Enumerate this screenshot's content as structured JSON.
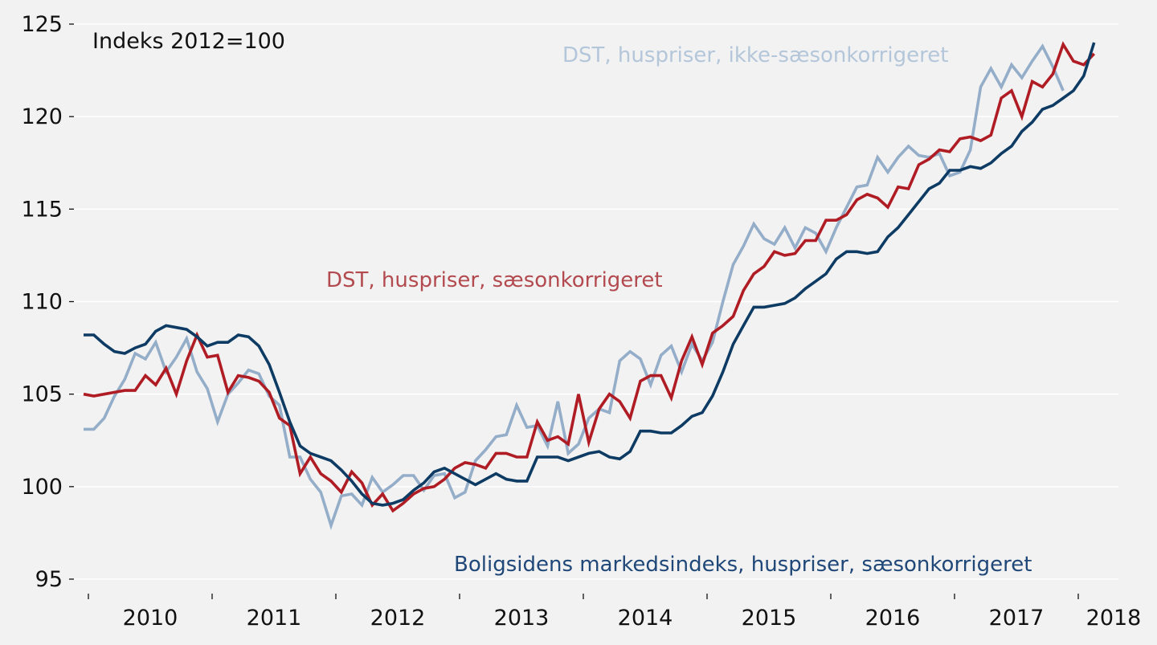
{
  "chart_data": {
    "type": "line",
    "title": "Indeks 2012=100",
    "xlabel": "",
    "ylabel": "",
    "ylim": [
      95,
      125
    ],
    "yticks": [
      95,
      100,
      105,
      110,
      115,
      120,
      125
    ],
    "ytick_labels": [
      "95",
      "100",
      "105",
      "110",
      "115",
      "120",
      "125"
    ],
    "xlim_months": [
      "2009-12",
      "2018-02"
    ],
    "xtick_labels": [
      "2010",
      "2011",
      "2012",
      "2013",
      "2014",
      "2015",
      "2016",
      "2017",
      "2018"
    ],
    "grid": true,
    "start_month": "2009-12",
    "series": [
      {
        "name": "Boligsidens markedsindeks, huspriser, sæsonkorrigeret",
        "color": "#0d3b63",
        "label_color": "#1f4778",
        "values": [
          108.2,
          108.2,
          107.7,
          107.3,
          107.2,
          107.5,
          107.7,
          108.4,
          108.7,
          108.6,
          108.5,
          108.1,
          107.6,
          107.8,
          107.8,
          108.2,
          108.1,
          107.6,
          106.6,
          105.1,
          103.5,
          102.2,
          101.8,
          101.6,
          101.4,
          100.9,
          100.3,
          99.6,
          99.1,
          99.0,
          99.1,
          99.3,
          99.8,
          100.2,
          100.8,
          101.0,
          100.7,
          100.4,
          100.1,
          100.4,
          100.7,
          100.4,
          100.3,
          100.3,
          101.6,
          101.6,
          101.6,
          101.4,
          101.6,
          101.8,
          101.9,
          101.6,
          101.5,
          101.9,
          103.0,
          103.0,
          102.9,
          102.9,
          103.3,
          103.8,
          104.0,
          104.9,
          106.2,
          107.7,
          108.7,
          109.7,
          109.7,
          109.8,
          109.9,
          110.2,
          110.7,
          111.1,
          111.5,
          112.3,
          112.7,
          112.7,
          112.6,
          112.7,
          113.5,
          114.0,
          114.7,
          115.4,
          116.1,
          116.4,
          117.1,
          117.1,
          117.3,
          117.2,
          117.5,
          118.0,
          118.4,
          119.2,
          119.7,
          120.4,
          120.6,
          121.0,
          121.4,
          122.2,
          124.0
        ]
      },
      {
        "name": "DST, huspriser, sæsonkorrigeret",
        "color": "#b01c24",
        "label_color": "#b34a4f",
        "values": [
          105.0,
          104.9,
          105.0,
          105.1,
          105.2,
          105.2,
          106.0,
          105.5,
          106.4,
          105.0,
          106.8,
          108.2,
          107.0,
          107.1,
          105.1,
          106.0,
          105.9,
          105.7,
          105.1,
          103.7,
          103.3,
          100.7,
          101.6,
          100.7,
          100.3,
          99.7,
          100.8,
          100.2,
          99.0,
          99.6,
          98.7,
          99.1,
          99.6,
          99.9,
          100.0,
          100.4,
          101.0,
          101.3,
          101.2,
          101.0,
          101.8,
          101.8,
          101.6,
          101.6,
          103.5,
          102.5,
          102.7,
          102.3,
          105.0,
          102.4,
          104.2,
          105.0,
          104.6,
          103.7,
          105.7,
          106.0,
          106.0,
          104.8,
          106.8,
          108.1,
          106.6,
          108.3,
          108.7,
          109.2,
          110.6,
          111.5,
          111.9,
          112.7,
          112.5,
          112.6,
          113.3,
          113.3,
          114.4,
          114.4,
          114.7,
          115.5,
          115.8,
          115.6,
          115.1,
          116.2,
          116.1,
          117.4,
          117.7,
          118.2,
          118.1,
          118.8,
          118.9,
          118.7,
          119.0,
          121.0,
          121.4,
          120.0,
          121.9,
          121.6,
          122.3,
          123.9,
          123.0,
          122.8,
          123.4
        ]
      },
      {
        "name": "DST, huspriser, ikke-sæsonkorrigeret",
        "color": "#94adc8",
        "label_color": "#b4c6da",
        "values": [
          103.1,
          103.1,
          103.7,
          104.9,
          105.8,
          107.2,
          106.9,
          107.8,
          106.2,
          107.0,
          108.0,
          106.2,
          105.3,
          103.5,
          105.0,
          105.6,
          106.3,
          106.1,
          104.9,
          104.4,
          101.6,
          101.6,
          100.4,
          99.7,
          97.9,
          99.5,
          99.6,
          99.0,
          100.5,
          99.7,
          100.1,
          100.6,
          100.6,
          99.8,
          100.6,
          100.7,
          99.4,
          99.7,
          101.4,
          102.0,
          102.7,
          102.8,
          104.4,
          103.2,
          103.3,
          102.2,
          104.6,
          101.8,
          102.3,
          103.7,
          104.2,
          104.0,
          106.8,
          107.3,
          106.9,
          105.5,
          107.1,
          107.6,
          106.2,
          107.7,
          106.8,
          107.8,
          110.0,
          112.0,
          113.0,
          114.2,
          113.4,
          113.1,
          114.0,
          112.9,
          114.0,
          113.7,
          112.7,
          114.0,
          115.1,
          116.2,
          116.3,
          117.8,
          117.0,
          117.8,
          118.4,
          117.9,
          117.8,
          118.0,
          116.8,
          117.0,
          118.2,
          121.6,
          122.6,
          121.6,
          122.8,
          122.1,
          123.0,
          123.8,
          122.7,
          121.4
        ]
      }
    ],
    "annotations": [
      {
        "text": "Indeks 2012=100",
        "role": "title"
      },
      {
        "text": "DST, huspriser, ikke-sæsonkorrigeret",
        "series": 2
      },
      {
        "text": "DST, huspriser, sæsonkorrigeret",
        "series": 1
      },
      {
        "text": "Boligsidens markedsindeks, huspriser, sæsonkorrigeret",
        "series": 0
      }
    ],
    "background": "#f2f2f2",
    "gridline_color": "#ffffff"
  }
}
